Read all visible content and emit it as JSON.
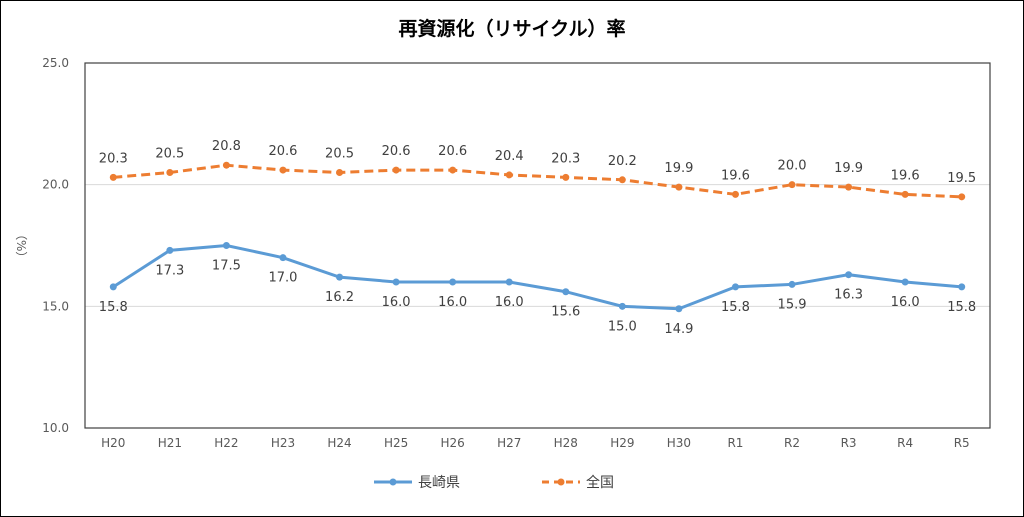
{
  "chart_data": {
    "type": "line",
    "title": "再資源化（リサイクル）率",
    "ylabel": "（%）",
    "xlabel": "",
    "categories": [
      "H20",
      "H21",
      "H22",
      "H23",
      "H24",
      "H25",
      "H26",
      "H27",
      "H28",
      "H29",
      "H30",
      "R1",
      "R2",
      "R3",
      "R4",
      "R5"
    ],
    "ylim": [
      10.0,
      25.0
    ],
    "yticks": [
      "10.0",
      "15.0",
      "20.0",
      "25.0"
    ],
    "grid": true,
    "legend": "bottom",
    "series": [
      {
        "name": "長崎県",
        "color": "#5B9BD5",
        "dash": "solid",
        "values": [
          15.8,
          17.3,
          17.5,
          17.0,
          16.2,
          16.0,
          16.0,
          16.0,
          15.6,
          15.0,
          14.9,
          15.8,
          15.9,
          16.3,
          16.0,
          15.8
        ]
      },
      {
        "name": "全国",
        "color": "#ED7D31",
        "dash": "dashed",
        "values": [
          20.3,
          20.5,
          20.8,
          20.6,
          20.5,
          20.6,
          20.6,
          20.4,
          20.3,
          20.2,
          19.9,
          19.6,
          20.0,
          19.9,
          19.6,
          19.5
        ]
      }
    ]
  }
}
